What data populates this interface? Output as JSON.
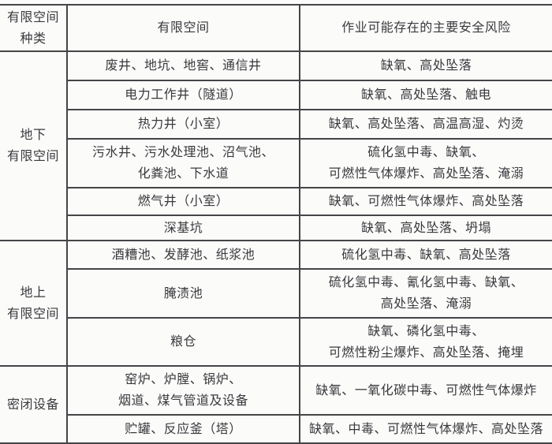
{
  "colors": {
    "border": "#454548",
    "text": "#3a3a3e",
    "background": "#fbfbfa"
  },
  "header": {
    "category": "有限空间\n种类",
    "space": "有限空间",
    "risk": "作业可能存在的主要安全风险"
  },
  "sections": [
    {
      "category": "地下\n有限空间",
      "rows": [
        {
          "space": "废井、地坑、地窖、通信井",
          "risk": "缺氧、高处坠落"
        },
        {
          "space": "电力工作井（隧道）",
          "risk": "缺氧、高处坠落、触电"
        },
        {
          "space": "热力井（小室）",
          "risk": "缺氧、高处坠落、高温高湿、灼烫"
        },
        {
          "space": "污水井、污水处理池、沼气池、\n化粪池、下水道",
          "risk": "硫化氢中毒、缺氧、\n可燃性气体爆炸、高处坠落、淹溺"
        },
        {
          "space": "燃气井（小室）",
          "risk": "缺氧、可燃性气体爆炸、高处坠落"
        },
        {
          "space": "深基坑",
          "risk": "缺氧、高处坠落、坍塌"
        }
      ]
    },
    {
      "category": "地上\n有限空间",
      "rows": [
        {
          "space": "酒糟池、发酵池、纸浆池",
          "risk": "硫化氢中毒、缺氧、高处坠落"
        },
        {
          "space": "腌渍池",
          "risk": "硫化氢中毒、氰化氢中毒、缺氧、\n高处坠落、淹溺"
        },
        {
          "space": "粮仓",
          "risk": "缺氧、磷化氢中毒、\n可燃性粉尘爆炸、高处坠落、掩埋"
        }
      ]
    },
    {
      "category": "密闭设备",
      "rows": [
        {
          "space": "窑炉、炉膛、锅炉、\n烟道、煤气管道及设备",
          "risk": "缺氧、一氧化碳中毒、可燃性气体爆炸"
        },
        {
          "space": "贮罐、反应釜（塔）",
          "risk": "缺氧、中毒、可燃性气体爆炸、高处坠落"
        }
      ]
    }
  ]
}
